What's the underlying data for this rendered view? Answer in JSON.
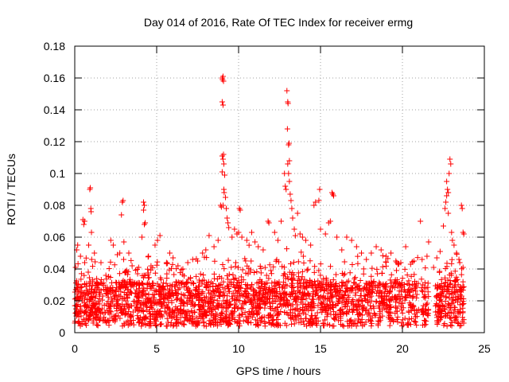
{
  "chart_data": {
    "type": "scatter",
    "title": "Day 014 of 2016, Rate Of TEC Index for receiver ermg",
    "xlabel": "GPS time / hours",
    "ylabel": "ROTI / TECUs",
    "xlim": [
      0,
      25
    ],
    "ylim": [
      0,
      0.18
    ],
    "xticks": [
      0,
      5,
      10,
      15,
      20,
      25
    ],
    "xtick_labels": [
      "0",
      "5",
      "10",
      "15",
      "20",
      "25"
    ],
    "yticks": [
      0,
      0.02,
      0.04,
      0.06,
      0.08,
      0.1,
      0.12,
      0.14,
      0.16,
      0.18
    ],
    "ytick_labels": [
      "0",
      "0.02",
      "0.04",
      "0.06",
      "0.08",
      "0.1",
      "0.12",
      "0.14",
      "0.16",
      "0.18"
    ],
    "grid": true,
    "marker": "+",
    "color": "#ff0000",
    "series": [
      {
        "name": "ROTI",
        "outliers": [
          [
            0.05,
            0.041
          ],
          [
            0.12,
            0.052
          ],
          [
            0.18,
            0.055
          ],
          [
            0.35,
            0.048
          ],
          [
            0.5,
            0.071
          ],
          [
            0.55,
            0.068
          ],
          [
            0.6,
            0.07
          ],
          [
            0.92,
            0.09
          ],
          [
            0.95,
            0.091
          ],
          [
            0.98,
            0.078
          ],
          [
            1.0,
            0.076
          ],
          [
            1.02,
            0.063
          ],
          [
            0.85,
            0.055
          ],
          [
            1.2,
            0.05
          ],
          [
            1.6,
            0.044
          ],
          [
            1.9,
            0.036
          ],
          [
            2.2,
            0.058
          ],
          [
            2.35,
            0.055
          ],
          [
            2.6,
            0.049
          ],
          [
            2.75,
            0.05
          ],
          [
            2.9,
            0.082
          ],
          [
            2.95,
            0.083
          ],
          [
            2.85,
            0.074
          ],
          [
            3.0,
            0.057
          ],
          [
            3.3,
            0.05
          ],
          [
            3.5,
            0.042
          ],
          [
            3.9,
            0.041
          ],
          [
            4.2,
            0.082
          ],
          [
            4.25,
            0.08
          ],
          [
            4.2,
            0.077
          ],
          [
            4.25,
            0.068
          ],
          [
            4.3,
            0.069
          ],
          [
            4.1,
            0.06
          ],
          [
            4.5,
            0.048
          ],
          [
            4.9,
            0.055
          ],
          [
            5.05,
            0.058
          ],
          [
            5.2,
            0.061
          ],
          [
            5.6,
            0.044
          ],
          [
            5.8,
            0.05
          ],
          [
            6.0,
            0.047
          ],
          [
            6.3,
            0.042
          ],
          [
            6.6,
            0.04
          ],
          [
            6.9,
            0.044
          ],
          [
            7.2,
            0.046
          ],
          [
            7.5,
            0.045
          ],
          [
            7.8,
            0.05
          ],
          [
            8.0,
            0.052
          ],
          [
            8.2,
            0.061
          ],
          [
            8.5,
            0.054
          ],
          [
            8.75,
            0.058
          ],
          [
            8.9,
            0.08
          ],
          [
            8.95,
            0.079
          ],
          [
            9.0,
            0.16
          ],
          [
            9.02,
            0.159
          ],
          [
            9.05,
            0.161
          ],
          [
            9.08,
            0.158
          ],
          [
            9.0,
            0.145
          ],
          [
            9.05,
            0.143
          ],
          [
            9.0,
            0.111
          ],
          [
            9.05,
            0.109
          ],
          [
            9.08,
            0.112
          ],
          [
            9.1,
            0.106
          ],
          [
            9.0,
            0.101
          ],
          [
            9.15,
            0.099
          ],
          [
            9.1,
            0.09
          ],
          [
            9.12,
            0.088
          ],
          [
            9.2,
            0.085
          ],
          [
            9.05,
            0.08
          ],
          [
            9.25,
            0.078
          ],
          [
            9.3,
            0.072
          ],
          [
            9.35,
            0.069
          ],
          [
            9.4,
            0.066
          ],
          [
            9.6,
            0.06
          ],
          [
            9.75,
            0.065
          ],
          [
            9.9,
            0.062
          ],
          [
            10.0,
            0.063
          ],
          [
            10.05,
            0.078
          ],
          [
            10.1,
            0.077
          ],
          [
            10.2,
            0.06
          ],
          [
            10.5,
            0.058
          ],
          [
            10.8,
            0.063
          ],
          [
            11.0,
            0.057
          ],
          [
            11.2,
            0.054
          ],
          [
            11.5,
            0.052
          ],
          [
            11.8,
            0.07
          ],
          [
            11.85,
            0.069
          ],
          [
            12.2,
            0.063
          ],
          [
            12.4,
            0.058
          ],
          [
            12.6,
            0.07
          ],
          [
            12.8,
            0.1
          ],
          [
            12.85,
            0.092
          ],
          [
            12.95,
            0.152
          ],
          [
            13.0,
            0.145
          ],
          [
            13.02,
            0.144
          ],
          [
            12.98,
            0.128
          ],
          [
            13.05,
            0.118
          ],
          [
            13.08,
            0.119
          ],
          [
            13.1,
            0.108
          ],
          [
            13.0,
            0.106
          ],
          [
            13.05,
            0.1
          ],
          [
            13.1,
            0.095
          ],
          [
            12.9,
            0.09
          ],
          [
            13.15,
            0.087
          ],
          [
            13.2,
            0.083
          ],
          [
            13.25,
            0.078
          ],
          [
            13.3,
            0.072
          ],
          [
            13.4,
            0.065
          ],
          [
            13.6,
            0.075
          ],
          [
            13.75,
            0.062
          ],
          [
            13.9,
            0.06
          ],
          [
            14.1,
            0.058
          ],
          [
            14.4,
            0.055
          ],
          [
            14.6,
            0.08
          ],
          [
            14.7,
            0.082
          ],
          [
            14.9,
            0.083
          ],
          [
            14.95,
            0.09
          ],
          [
            15.0,
            0.065
          ],
          [
            15.3,
            0.062
          ],
          [
            15.5,
            0.069
          ],
          [
            15.7,
            0.088
          ],
          [
            15.75,
            0.087
          ],
          [
            15.8,
            0.086
          ],
          [
            15.6,
            0.07
          ],
          [
            16.0,
            0.06
          ],
          [
            16.3,
            0.052
          ],
          [
            16.6,
            0.06
          ],
          [
            16.9,
            0.058
          ],
          [
            17.2,
            0.054
          ],
          [
            17.5,
            0.05
          ],
          [
            17.8,
            0.046
          ],
          [
            18.1,
            0.05
          ],
          [
            18.4,
            0.054
          ],
          [
            18.7,
            0.052
          ],
          [
            19.0,
            0.048
          ],
          [
            19.3,
            0.05
          ],
          [
            19.6,
            0.045
          ],
          [
            19.9,
            0.044
          ],
          [
            20.2,
            0.054
          ],
          [
            20.5,
            0.043
          ],
          [
            20.7,
            0.045
          ],
          [
            21.1,
            0.07
          ],
          [
            21.2,
            0.046
          ],
          [
            21.5,
            0.048
          ],
          [
            21.6,
            0.057
          ],
          [
            21.9,
            0.041
          ],
          [
            22.1,
            0.047
          ],
          [
            22.3,
            0.051
          ],
          [
            22.5,
            0.067
          ],
          [
            22.6,
            0.078
          ],
          [
            22.65,
            0.082
          ],
          [
            22.7,
            0.095
          ],
          [
            22.75,
            0.09
          ],
          [
            22.8,
            0.088
          ],
          [
            22.85,
            0.1
          ],
          [
            22.9,
            0.109
          ],
          [
            22.95,
            0.106
          ],
          [
            22.7,
            0.086
          ],
          [
            22.8,
            0.075
          ],
          [
            23.0,
            0.063
          ],
          [
            23.05,
            0.058
          ],
          [
            23.15,
            0.055
          ],
          [
            23.3,
            0.05
          ],
          [
            23.45,
            0.046
          ],
          [
            23.6,
            0.08
          ],
          [
            23.65,
            0.078
          ],
          [
            23.7,
            0.063
          ],
          [
            23.75,
            0.062
          ],
          [
            23.5,
            0.044
          ],
          [
            23.7,
            0.041
          ]
        ]
      }
    ],
    "annotations": []
  }
}
